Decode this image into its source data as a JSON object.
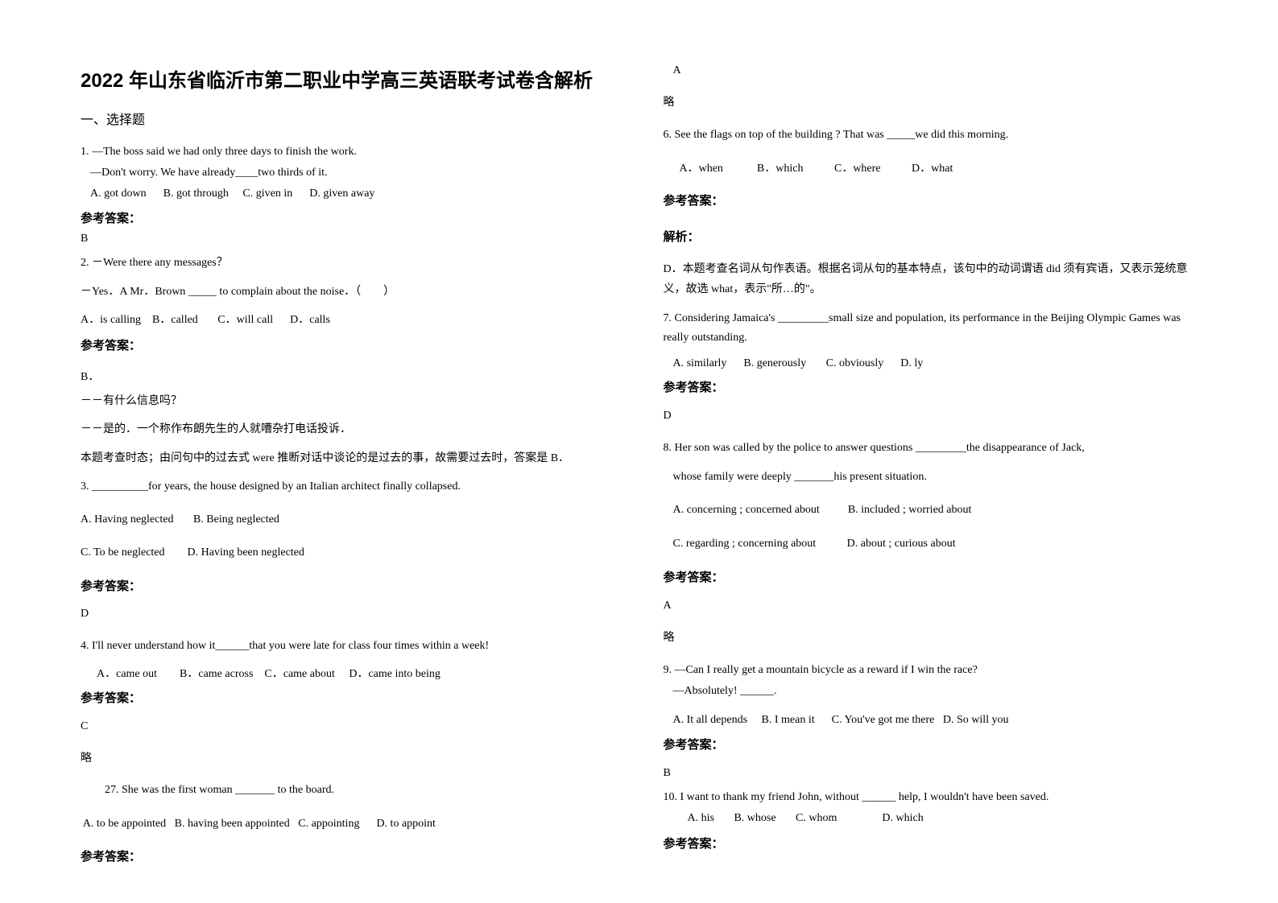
{
  "title": "2022 年山东省临沂市第二职业中学高三英语联考试卷含解析",
  "section1": "一、选择题",
  "answer_label": "参考答案：",
  "explain_label": "解析：",
  "omit": "略",
  "q1": {
    "l1": "1. —The boss said we had only three days to finish the work.",
    "l2": "—Don't worry. We have already____two thirds of it.",
    "opts": "A. got down      B. got through     C. given in      D. given away",
    "ans": "B"
  },
  "q2": {
    "l1": "2. －Were there any messages？",
    "l2": "－Yes．A Mr．Brown _____ to complain about the noise．（　　）",
    "opts": "A．is calling    B．called       C．will call      D．calls",
    "ans": "B．",
    "e1": "－－有什么信息吗？",
    "e2": "－－是的．一个称作布朗先生的人就嘈杂打电话投诉．",
    "e3": "本题考查时态；由问句中的过去式 were 推断对话中谈论的是过去的事，故需要过去时，答案是 B．"
  },
  "q3": {
    "l1": "3. __________for years, the house designed by an Italian architect finally collapsed.",
    "o1": "A. Having neglected       B. Being neglected",
    "o2": "C. To be neglected        D. Having been neglected",
    "ans": "D"
  },
  "q4": {
    "l1": "4. I'll never understand how it______that you were late for class four times within a week!",
    "opts": "A．came out        B．came across    C．came about     D．came into being",
    "ans": "C"
  },
  "q27": {
    "l1": "27. She was the first woman _______ to the board.",
    "opts": " A. to be appointed   B. having been appointed   C. appointing      D. to appoint"
  },
  "q5ans": "A",
  "q6": {
    "l1": "6. See the flags on top of the building ? That was _____we did this morning.",
    "opts": "A．when            B．which           C．where           D．what",
    "e1": "D．本题考查名词从句作表语。根据名词从句的基本特点，该句中的动词谓语 did 须有宾语，又表示笼统意义，故选 what，表示\"所…的\"。"
  },
  "q7": {
    "l1": "7. Considering Jamaica's _________small size and population, its performance in the Beijing  Olympic Games was really outstanding.",
    "opts": "A. similarly      B. generously       C. obviously      D. ly",
    "ans": "D"
  },
  "q8": {
    "l1": "8. Her son was called by the police to answer questions _________the disappearance of Jack,",
    "l2": "whose family were deeply _______his present situation.",
    "o1": "A. concerning ; concerned about          B. included ; worried about",
    "o2": "C. regarding ; concerning about           D. about ; curious about",
    "ans": "A"
  },
  "q9": {
    "l1": "9. —Can I really get a mountain bicycle as a reward if I win the race?",
    "l2": "—Absolutely! ______.",
    "opts": "A. It all depends     B. I mean it      C. You've got me there   D. So will you",
    "ans": "B"
  },
  "q10": {
    "l1": "10. I want to thank my friend John, without ______ help, I wouldn't have been saved.",
    "opts": "A. his       B. whose       C. whom                D. which"
  }
}
